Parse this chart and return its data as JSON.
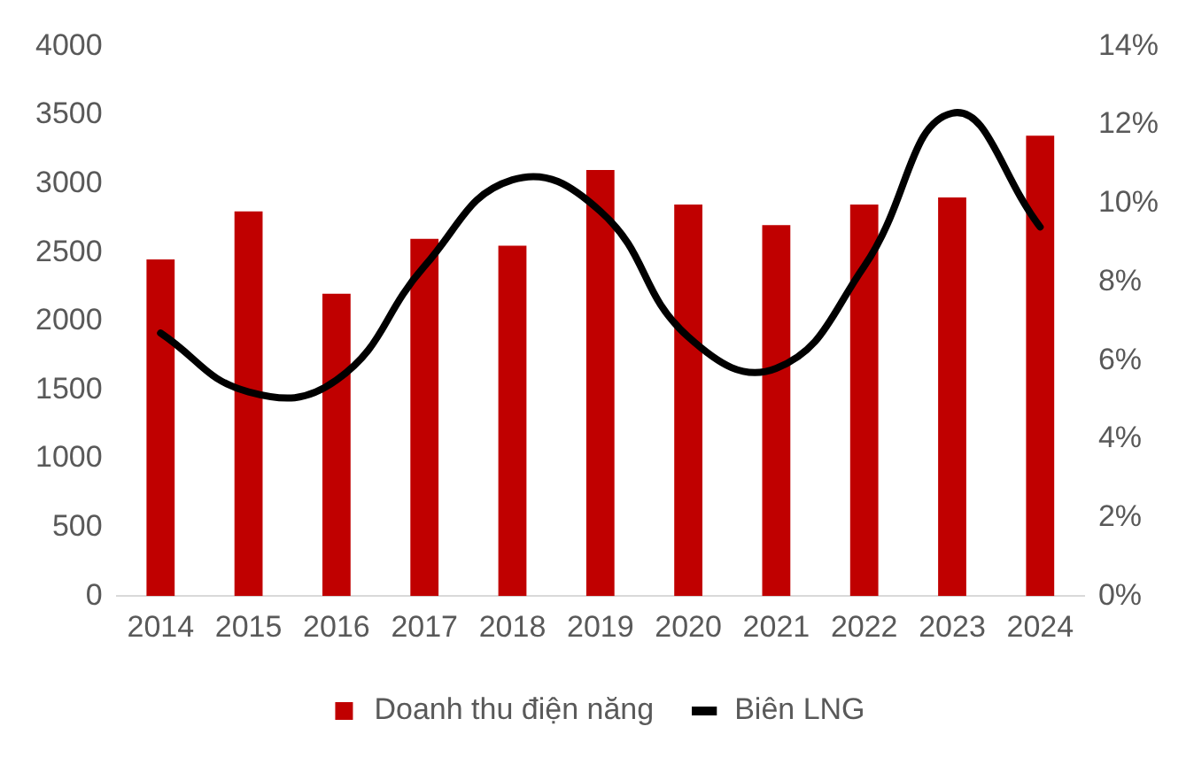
{
  "chart_data": {
    "type": "bar",
    "categories": [
      "2014",
      "2015",
      "2016",
      "2017",
      "2018",
      "2019",
      "2020",
      "2021",
      "2022",
      "2023",
      "2024"
    ],
    "series": [
      {
        "name": "Doanh thu điện năng",
        "color": "#c00000",
        "values": [
          2450,
          2800,
          2200,
          2600,
          2550,
          3100,
          2850,
          2700,
          2850,
          2900,
          3350
        ]
      },
      {
        "name": "Biên LNG",
        "type": "line",
        "axis": "y2",
        "color": "#000000",
        "values": [
          6.7,
          5.2,
          5.5,
          8.4,
          10.6,
          9.8,
          6.6,
          5.8,
          8.4,
          12.3,
          9.4
        ]
      }
    ],
    "ylim": [
      0,
      4000
    ],
    "yticks": [
      0,
      500,
      1000,
      1500,
      2000,
      2500,
      3000,
      3500,
      4000
    ],
    "y2lim": [
      0,
      14
    ],
    "y2ticks": [
      {
        "value": 0,
        "label": "0%"
      },
      {
        "value": 2,
        "label": "2%"
      },
      {
        "value": 4,
        "label": "4%"
      },
      {
        "value": 6,
        "label": "6%"
      },
      {
        "value": 8,
        "label": "8%"
      },
      {
        "value": 10,
        "label": "10%"
      },
      {
        "value": 12,
        "label": "12%"
      },
      {
        "value": 14,
        "label": "14%"
      }
    ],
    "grid": false,
    "legend": "bottom",
    "marker": "none"
  }
}
